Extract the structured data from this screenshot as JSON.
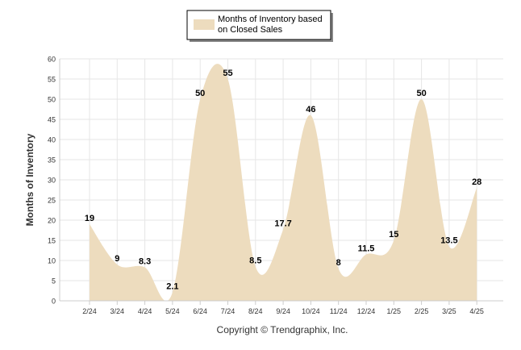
{
  "chart_data": {
    "type": "area",
    "categories": [
      "2/24",
      "3/24",
      "4/24",
      "5/24",
      "6/24",
      "7/24",
      "8/24",
      "9/24",
      "10/24",
      "11/24",
      "12/24",
      "1/25",
      "2/25",
      "3/25",
      "4/25"
    ],
    "series": [
      {
        "name": "Months of Inventory based on Closed Sales",
        "legend_lines": [
          "Months of Inventory based",
          "on Closed Sales"
        ],
        "values": [
          19,
          9,
          8.3,
          2.1,
          50,
          55,
          8.5,
          17.7,
          46,
          8,
          11.5,
          15,
          50,
          13.5,
          28
        ],
        "data_labels": [
          "19",
          "9",
          "8.3",
          "2.1",
          "50",
          "55",
          "8.5",
          "17.7",
          "46",
          "8",
          "11.5",
          "15",
          "50",
          "13.5",
          "28"
        ]
      }
    ],
    "ylabel": "Months of Inventory",
    "xlabel": "",
    "ylim": [
      0,
      60
    ],
    "yticks": [
      0,
      5,
      10,
      15,
      20,
      25,
      30,
      35,
      40,
      45,
      50,
      55,
      60
    ],
    "grid": true,
    "legend_position": "top-center",
    "colors": {
      "fill": "#eddcbe",
      "grid": "#e6e6e6",
      "axis": "#cccccc",
      "text": "#333333",
      "label": "#000000"
    }
  },
  "footer": {
    "copyright": "Copyright © Trendgraphix, Inc."
  }
}
